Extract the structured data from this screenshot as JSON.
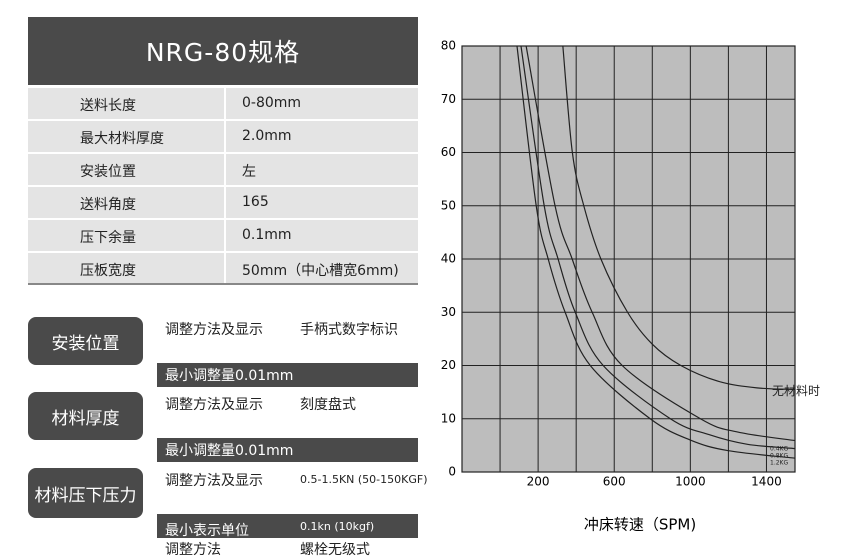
{
  "spec": {
    "title": "NRG-80规格",
    "rows": [
      [
        "送料长度",
        "0-80mm"
      ],
      [
        "最大材料厚度",
        "2.0mm"
      ],
      [
        "安装位置",
        "左"
      ],
      [
        "送料角度",
        "165"
      ],
      [
        "压下余量",
        "0.1mm"
      ],
      [
        "压板宽度",
        "50mm（中心槽宽6mm)"
      ]
    ]
  },
  "adjust": [
    {
      "label": "安装位置",
      "rows": [
        [
          "调整方法及显示",
          "手柄式数字标识"
        ],
        [
          "最小调整量0.01mm"
        ]
      ]
    },
    {
      "label": "材料厚度",
      "rows": [
        [
          "调整方法及显示",
          "刻度盘式"
        ],
        [
          "最小调整量0.01mm"
        ]
      ]
    },
    {
      "label": "材料压下压力",
      "rows": [
        [
          "调整方法及显示",
          "0.5-1.5KN (50-150KGF)"
        ],
        [
          "最小表示单位",
          "0.1kn (10kgf)"
        ],
        [
          "调整方法",
          "螺栓无级式"
        ]
      ]
    }
  ],
  "chart_data": {
    "type": "line",
    "x_label": "冲床转速（SPM)",
    "xlim": [
      -200,
      1550
    ],
    "xticks": [
      200,
      600,
      1000,
      1400
    ],
    "ylim": [
      0,
      80
    ],
    "yticks": [
      0,
      10,
      20,
      30,
      40,
      50,
      60,
      70,
      80
    ],
    "grid": true,
    "series": [
      {
        "name": "无材料时",
        "color": "#222222",
        "x": [
          330,
          380,
          440,
          530,
          670,
          800,
          950,
          1150,
          1350,
          1550
        ],
        "values": [
          80,
          60,
          50,
          40,
          30,
          24,
          20,
          17,
          15.8,
          15.5
        ]
      },
      {
        "name": "0.4KG",
        "color": "#222222",
        "x": [
          137,
          289,
          379,
          484,
          642,
          1053,
          1250,
          1550
        ],
        "values": [
          80,
          50,
          40,
          30,
          20,
          10,
          7.5,
          5.9
        ]
      },
      {
        "name": "0.8KG",
        "color": "#222222",
        "x": [
          110,
          232,
          305,
          395,
          542,
          895,
          1100,
          1300,
          1550
        ],
        "values": [
          80,
          50,
          40,
          30,
          20,
          10,
          7,
          5.2,
          4.4
        ]
      },
      {
        "name": "1.2KG",
        "color": "#222222",
        "x": [
          89,
          190,
          253,
          342,
          474,
          789,
          1000,
          1200,
          1550
        ],
        "values": [
          80,
          50,
          40,
          30,
          20,
          10,
          6,
          4,
          2.6
        ]
      }
    ]
  }
}
